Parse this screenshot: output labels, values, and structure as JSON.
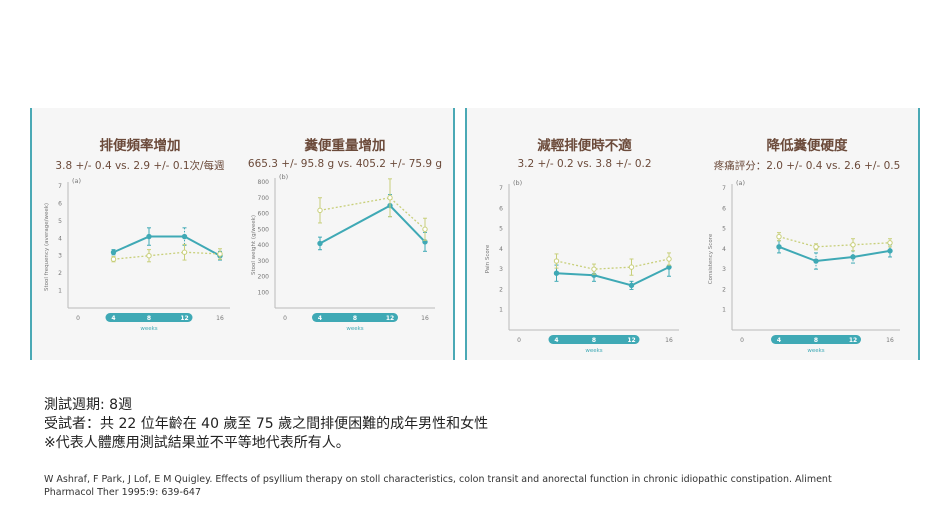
{
  "page": {
    "title": "",
    "notes": [
      "測試週期: 8週",
      "受試者：共 22 位年齡在 40 歲至 75 歲之間排便困難的成年男性和女性",
      "※代表人體應用測試結果並不平等地代表所有人。"
    ],
    "citation": "W Ashraf, F Park, J Lof, E M Quigley. Effects of psyllium therapy on stoll characteristics, colon transit and anorectal function in chronic idiopathic constipation. Aliment Pharmacol Ther 1995:9: 639-647"
  },
  "colors": {
    "accent": "#3fa9b5",
    "comparison": "#c8cf7a",
    "title_text": "#6b4a3a",
    "panel_bg": "#f6f6f6"
  },
  "chart_data": [
    {
      "type": "line",
      "title": "排便頻率增加",
      "subtitle": "3.8 +/- 0.4  vs. 2.9 +/- 0.1次/每週",
      "panel_label": "(a)",
      "ylabel": "Stool frequency (average/week)",
      "xlabel": "weeks",
      "x": [
        4,
        8,
        12,
        16
      ],
      "xlim": [
        0,
        16
      ],
      "xticks": [
        "0",
        "4",
        "8",
        "12",
        "16"
      ],
      "highlight_ticks": [
        "4",
        "8",
        "12"
      ],
      "ylim": [
        0,
        7
      ],
      "yticks": [
        "1",
        "2",
        "3",
        "4",
        "5",
        "6",
        "7"
      ],
      "series": [
        {
          "values": [
            3.2,
            4.1,
            4.1,
            3.0
          ],
          "style": "solid",
          "color": "#3fa9b5",
          "err": [
            0.15,
            0.5,
            0.5,
            0.25
          ],
          "sig": [
            false,
            false,
            true,
            false
          ]
        },
        {
          "values": [
            2.8,
            3.0,
            3.2,
            3.1
          ],
          "style": "dotted",
          "color": "#c8cf7a",
          "err": [
            0.15,
            0.35,
            0.45,
            0.3
          ],
          "sig": [
            false,
            false,
            false,
            false
          ]
        }
      ]
    },
    {
      "type": "line",
      "title": "糞便重量增加",
      "subtitle": "665.3 +/- 95.8 g  vs. 405.2 +/- 75.9 g",
      "panel_label": "(b)",
      "ylabel": "Stool weight (g/week)",
      "xlabel": "weeks",
      "x": [
        4,
        12,
        16
      ],
      "xlim": [
        0,
        16
      ],
      "xticks": [
        "0",
        "4",
        "8",
        "12",
        "16"
      ],
      "highlight_ticks": [
        "4",
        "8",
        "12"
      ],
      "ylim": [
        0,
        800
      ],
      "yticks": [
        "100",
        "200",
        "300",
        "400",
        "500",
        "600",
        "700",
        "800"
      ],
      "series": [
        {
          "values": [
            410,
            650,
            420
          ],
          "style": "solid",
          "color": "#3fa9b5",
          "err": [
            40,
            70,
            60
          ],
          "sig": [
            false,
            true,
            false
          ]
        },
        {
          "values": [
            620,
            700,
            500
          ],
          "style": "dotted",
          "color": "#c8cf7a",
          "err": [
            80,
            120,
            70
          ],
          "sig": [
            false,
            false,
            false
          ]
        }
      ]
    },
    {
      "type": "line",
      "title": "減輕排便時不適",
      "subtitle": "3.2 +/- 0.2 vs. 3.8 +/- 0.2",
      "panel_label": "(b)",
      "ylabel": "Pain Score",
      "xlabel": "weeks",
      "x": [
        4,
        8,
        12,
        16
      ],
      "xlim": [
        0,
        16
      ],
      "xticks": [
        "0",
        "4",
        "8",
        "12",
        "16"
      ],
      "highlight_ticks": [
        "4",
        "8",
        "12"
      ],
      "ylim": [
        0,
        7
      ],
      "yticks": [
        "1",
        "2",
        "3",
        "4",
        "5",
        "6",
        "7"
      ],
      "series": [
        {
          "values": [
            2.8,
            2.7,
            2.2,
            3.1
          ],
          "style": "solid",
          "color": "#3fa9b5",
          "err": [
            0.4,
            0.3,
            0.2,
            0.45
          ],
          "sig": [
            false,
            false,
            true,
            false
          ]
        },
        {
          "values": [
            3.4,
            3.0,
            3.1,
            3.5
          ],
          "style": "dotted",
          "color": "#c8cf7a",
          "err": [
            0.35,
            0.25,
            0.4,
            0.3
          ],
          "sig": [
            false,
            false,
            false,
            false
          ]
        }
      ]
    },
    {
      "type": "line",
      "title": "降低糞便硬度",
      "subtitle": "疼痛評分：2.0 +/- 0.4 vs. 2.6 +/- 0.5",
      "panel_label": "(a)",
      "ylabel": "Consistency Score",
      "xlabel": "weeks",
      "x": [
        4,
        8,
        12,
        16
      ],
      "xlim": [
        0,
        16
      ],
      "xticks": [
        "0",
        "4",
        "8",
        "12",
        "16"
      ],
      "highlight_ticks": [
        "4",
        "8",
        "12"
      ],
      "ylim": [
        0,
        7
      ],
      "yticks": [
        "1",
        "2",
        "3",
        "4",
        "5",
        "6",
        "7"
      ],
      "series": [
        {
          "values": [
            4.1,
            3.4,
            3.6,
            3.9
          ],
          "style": "solid",
          "color": "#3fa9b5",
          "err": [
            0.3,
            0.4,
            0.3,
            0.3
          ],
          "sig": [
            false,
            true,
            true,
            false
          ]
        },
        {
          "values": [
            4.6,
            4.1,
            4.2,
            4.3
          ],
          "style": "dotted",
          "color": "#c8cf7a",
          "err": [
            0.2,
            0.15,
            0.3,
            0.2
          ],
          "sig": [
            false,
            false,
            false,
            false
          ]
        }
      ]
    }
  ]
}
